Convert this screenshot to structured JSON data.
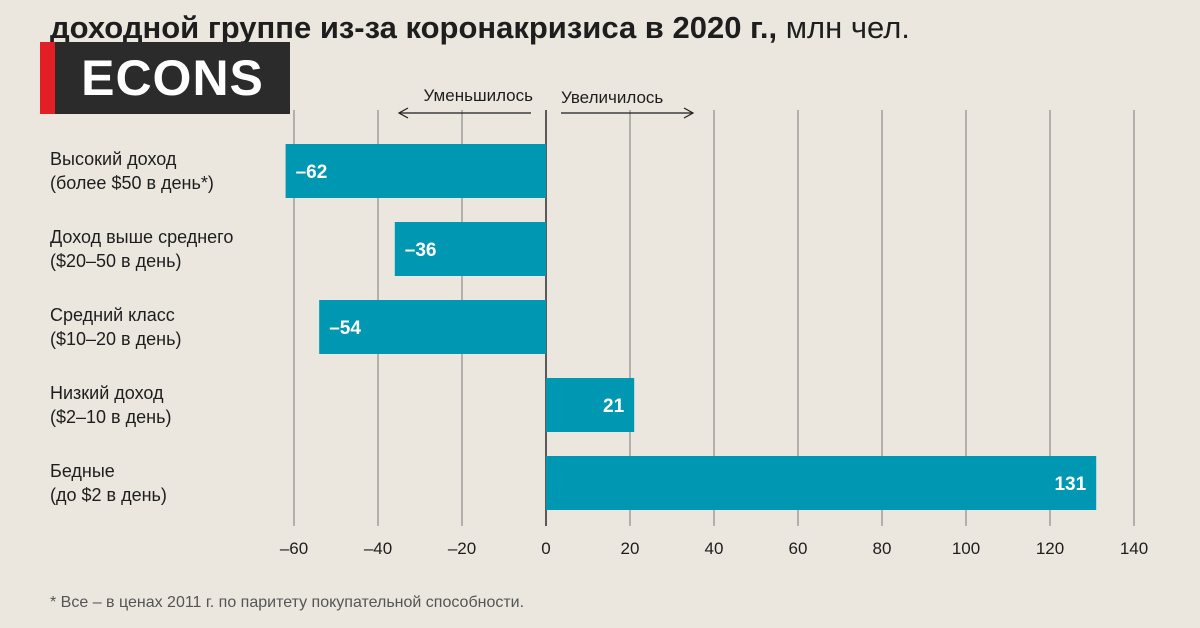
{
  "header": {
    "title_bold": "доходной группе из-за коронакризиса в 2020 г.,",
    "title_unit": "млн чел."
  },
  "logo": {
    "text": "ECONS"
  },
  "footnote": "* Все – в ценах 2011 г. по паритету покупательной способности.",
  "colors": {
    "bar": "#0097b2",
    "background": "#ebe6de",
    "logo_accent": "#e31e24",
    "logo_bg": "#2b2b2b"
  },
  "chart_data": {
    "type": "bar",
    "orientation": "horizontal",
    "categories": [
      [
        "Высокий доход",
        "(более $50 в день*)"
      ],
      [
        "Доход выше среднего",
        "($20–50 в день)"
      ],
      [
        "Средний класс",
        "($10–20 в день)"
      ],
      [
        "Низкий доход",
        "($2–10 в день)"
      ],
      [
        "Бедные",
        "(до $2 в день)"
      ]
    ],
    "values": [
      -62,
      -36,
      -54,
      21,
      131
    ],
    "value_labels": [
      "–62",
      "–36",
      "–54",
      "21",
      "131"
    ],
    "xlim": [
      -60,
      140
    ],
    "xticks": [
      -60,
      -40,
      -20,
      0,
      20,
      40,
      60,
      80,
      100,
      120,
      140
    ],
    "xtick_labels": [
      "–60",
      "–40",
      "–20",
      "0",
      "20",
      "40",
      "60",
      "80",
      "100",
      "120",
      "140"
    ],
    "direction_labels": {
      "left": "Уменьшилось",
      "right": "Увеличилось"
    },
    "grid": true
  }
}
